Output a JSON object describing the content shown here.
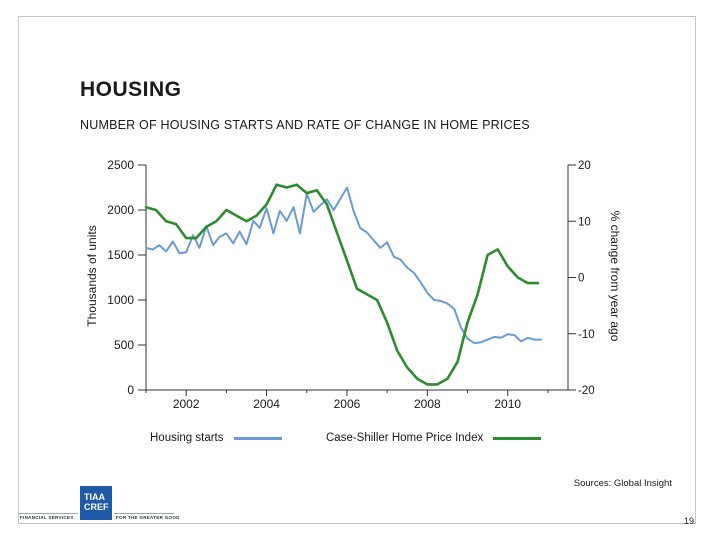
{
  "slide": {
    "title": "HOUSING",
    "subtitle": "NUMBER OF HOUSING STARTS AND RATE OF CHANGE IN HOME PRICES",
    "source": "Sources: Global Insight",
    "page_number": "19"
  },
  "footer": {
    "logo_text_line1": "TIAA",
    "logo_text_line2": "CREF",
    "left_caption": "FINANCIAL SERVICES",
    "right_caption": "FOR THE GREATER GOOD"
  },
  "colors": {
    "housing_starts": "#6b9bd6",
    "home_price_index": "#2e8b2e",
    "axis": "#333333"
  },
  "chart_data": {
    "type": "line",
    "title": "",
    "xlabel": "",
    "ylabel": "Thousands of units",
    "y2label": "% change from year ago",
    "xlim": [
      2001,
      2011.5
    ],
    "ylim": [
      0,
      2500
    ],
    "y2lim": [
      -20,
      20
    ],
    "x_ticks": [
      2002,
      2004,
      2006,
      2008,
      2010
    ],
    "y_ticks": [
      0,
      500,
      1000,
      1500,
      2000,
      2500
    ],
    "y2_ticks": [
      -20,
      -10,
      0,
      10,
      20
    ],
    "y2_tick_labels": [
      "-20",
      "-10",
      "0",
      "10",
      "20"
    ],
    "grid": false,
    "legend_position": "bottom",
    "series": [
      {
        "name": "Housing starts",
        "axis": "left",
        "x": [
          2001.0,
          2001.17,
          2001.33,
          2001.5,
          2001.67,
          2001.83,
          2002.0,
          2002.17,
          2002.33,
          2002.5,
          2002.67,
          2002.83,
          2003.0,
          2003.17,
          2003.33,
          2003.5,
          2003.67,
          2003.83,
          2004.0,
          2004.17,
          2004.33,
          2004.5,
          2004.67,
          2004.83,
          2005.0,
          2005.17,
          2005.33,
          2005.5,
          2005.67,
          2005.83,
          2006.0,
          2006.17,
          2006.33,
          2006.5,
          2006.67,
          2006.83,
          2007.0,
          2007.17,
          2007.33,
          2007.5,
          2007.67,
          2007.83,
          2008.0,
          2008.17,
          2008.33,
          2008.5,
          2008.67,
          2008.83,
          2009.0,
          2009.17,
          2009.33,
          2009.5,
          2009.67,
          2009.83,
          2010.0,
          2010.17,
          2010.33,
          2010.5,
          2010.67,
          2010.83
        ],
        "values": [
          1580,
          1560,
          1610,
          1540,
          1650,
          1520,
          1530,
          1720,
          1580,
          1820,
          1610,
          1700,
          1740,
          1630,
          1760,
          1620,
          1880,
          1800,
          2020,
          1740,
          1990,
          1880,
          2030,
          1740,
          2180,
          1980,
          2050,
          2120,
          2000,
          2120,
          2250,
          1980,
          1800,
          1750,
          1660,
          1580,
          1640,
          1480,
          1450,
          1360,
          1300,
          1200,
          1080,
          1000,
          990,
          960,
          900,
          700,
          570,
          520,
          530,
          560,
          590,
          580,
          620,
          610,
          540,
          580,
          560,
          560
        ]
      },
      {
        "name": "Case-Shiller Home Price Index",
        "axis": "right",
        "x": [
          2001.0,
          2001.25,
          2001.5,
          2001.75,
          2002.0,
          2002.25,
          2002.5,
          2002.75,
          2003.0,
          2003.25,
          2003.5,
          2003.75,
          2004.0,
          2004.25,
          2004.5,
          2004.75,
          2005.0,
          2005.25,
          2005.5,
          2005.75,
          2006.0,
          2006.25,
          2006.5,
          2006.75,
          2007.0,
          2007.25,
          2007.5,
          2007.75,
          2008.0,
          2008.25,
          2008.5,
          2008.75,
          2009.0,
          2009.25,
          2009.5,
          2009.75,
          2010.0,
          2010.25,
          2010.5,
          2010.75
        ],
        "values": [
          12.5,
          12,
          10,
          9.5,
          7,
          7,
          9,
          10,
          12,
          11,
          10,
          11,
          13,
          16.5,
          16,
          16.5,
          15,
          15.5,
          13,
          8,
          3,
          -2,
          -3,
          -4,
          -8,
          -13,
          -16,
          -18,
          -19,
          -19,
          -18,
          -15,
          -8,
          -3,
          4,
          5,
          2,
          0,
          -1,
          -1
        ]
      }
    ]
  }
}
